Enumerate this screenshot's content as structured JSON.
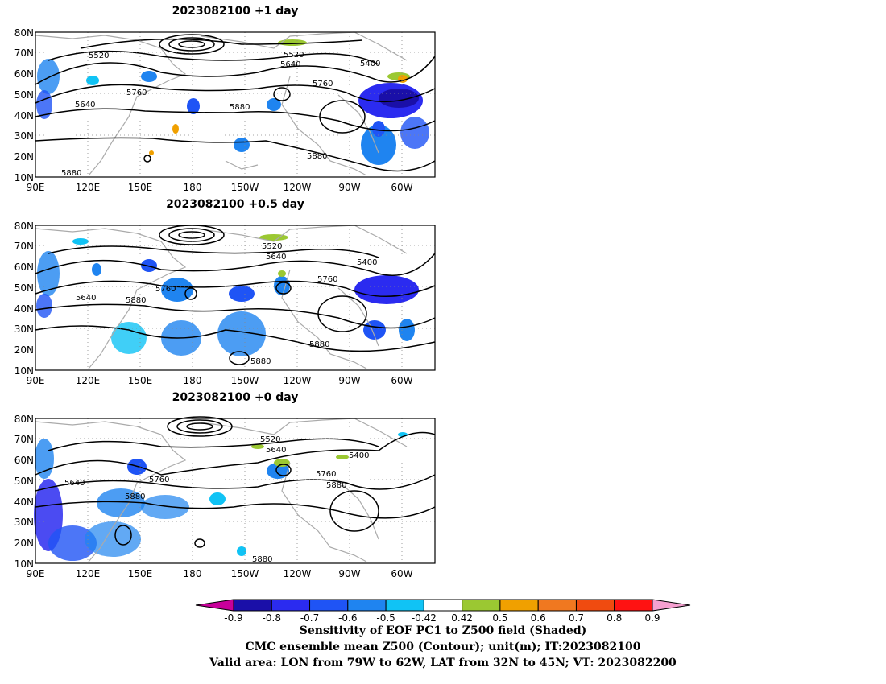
{
  "panels": [
    {
      "title": "2023082100  +1 day"
    },
    {
      "title": "2023082100  +0.5 day"
    },
    {
      "title": "2023082100  +0 day"
    }
  ],
  "axes": {
    "lat_ticks": [
      "80N",
      "70N",
      "60N",
      "50N",
      "40N",
      "30N",
      "20N",
      "10N"
    ],
    "lon_ticks": [
      "90E",
      "120E",
      "150E",
      "180",
      "150W",
      "120W",
      "90W",
      "60W"
    ],
    "lat_range": [
      10,
      80
    ],
    "lon_range_deg_east": [
      90,
      320
    ]
  },
  "contour_labels": [
    [
      "5520",
      "5640",
      "5400",
      "5760",
      "5640",
      "5760",
      "5880",
      "5880",
      "5880"
    ],
    [
      "5520",
      "5640",
      "5400",
      "5760",
      "5640",
      "5760",
      "5880",
      "5880",
      "5880"
    ],
    [
      "5520",
      "5640",
      "5400",
      "5760",
      "5880",
      "5640",
      "5760",
      "5880",
      "5880"
    ]
  ],
  "colorbar": {
    "ticks": [
      "-0.9",
      "-0.8",
      "-0.7",
      "-0.6",
      "-0.5",
      "-0.42",
      "0.42",
      "0.5",
      "0.6",
      "0.7",
      "0.8",
      "0.9"
    ],
    "colors": [
      "#1a0fa8",
      "#2b2bf0",
      "#1f54f5",
      "#1f84f0",
      "#10c3f5",
      "#ffffff",
      "#9bc832",
      "#f0a000",
      "#f07820",
      "#f04b10",
      "#ff1212"
    ],
    "low_end_color": "#c8009a",
    "high_end_color": "#f5a0d0"
  },
  "captions": [
    "Sensitivity of EOF PC1 to Z500 field (Shaded)",
    "CMC ensemble mean Z500 (Contour); unit(m); IT:2023082100",
    "Valid area: LON from 79W to 62W, LAT from 32N to 45N; VT: 2023082200"
  ]
}
